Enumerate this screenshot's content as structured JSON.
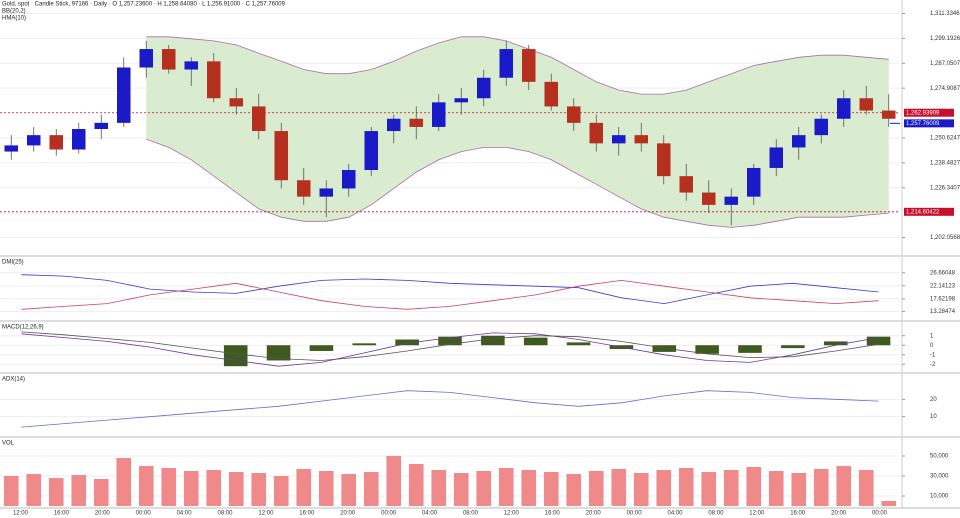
{
  "chart_data": [
    {
      "type": "candlestick",
      "title": "Gold, spot · Candle Stick, 97166 · Daily · O 1,257.23600 · H 1,258.64080 · L 1,256.91000 · C 1,257.76009",
      "annotations": [
        "BB(20,2)",
        "HMA(10)"
      ],
      "open": [
        1244,
        1247,
        1252,
        1245,
        1255,
        1258,
        1285,
        1294,
        1284,
        1288,
        1270,
        1266,
        1254,
        1230,
        1222,
        1226,
        1235,
        1254,
        1260,
        1256,
        1268,
        1270,
        1280,
        1294,
        1278,
        1266,
        1258,
        1248,
        1252,
        1248,
        1232,
        1224,
        1218,
        1222,
        1236,
        1246,
        1252,
        1260,
        1270,
        1264
      ],
      "high": [
        1252,
        1256,
        1255,
        1258,
        1262,
        1290,
        1298,
        1296,
        1290,
        1292,
        1275,
        1272,
        1258,
        1236,
        1230,
        1238,
        1256,
        1262,
        1266,
        1272,
        1275,
        1284,
        1298,
        1296,
        1282,
        1270,
        1262,
        1256,
        1258,
        1252,
        1238,
        1230,
        1226,
        1238,
        1250,
        1256,
        1262,
        1274,
        1276,
        1272
      ],
      "low": [
        1240,
        1244,
        1242,
        1243,
        1250,
        1256,
        1280,
        1282,
        1276,
        1268,
        1262,
        1250,
        1226,
        1218,
        1212,
        1222,
        1232,
        1248,
        1250,
        1254,
        1262,
        1266,
        1276,
        1274,
        1264,
        1254,
        1244,
        1242,
        1244,
        1228,
        1220,
        1214,
        1208,
        1218,
        1232,
        1240,
        1248,
        1256,
        1262,
        1256
      ],
      "close": [
        1247,
        1252,
        1245,
        1255,
        1258,
        1285,
        1294,
        1284,
        1288,
        1270,
        1266,
        1254,
        1230,
        1222,
        1226,
        1235,
        1254,
        1260,
        1256,
        1268,
        1270,
        1280,
        1294,
        1278,
        1266,
        1258,
        1248,
        1252,
        1248,
        1232,
        1224,
        1218,
        1222,
        1236,
        1246,
        1252,
        1260,
        1270,
        1264,
        1260
      ],
      "up_color": "#1a1ac8",
      "down_color": "#b5301f",
      "bands": {
        "color": "#b06aa8",
        "fill": "#d9ecd0",
        "upper": [
          null,
          null,
          null,
          null,
          null,
          null,
          1300,
          1300,
          1299,
          1298,
          1296,
          1292,
          1288,
          1284,
          1282,
          1282,
          1284,
          1288,
          1293,
          1297,
          1300,
          1300,
          1298,
          1294,
          1290,
          1284,
          1278,
          1274,
          1272,
          1272,
          1274,
          1278,
          1282,
          1286,
          1288,
          1290,
          1291,
          1291,
          1290,
          1289
        ],
        "lower": [
          null,
          null,
          null,
          null,
          null,
          null,
          1250,
          1246,
          1240,
          1232,
          1224,
          1216,
          1212,
          1210,
          1210,
          1212,
          1218,
          1226,
          1234,
          1240,
          1244,
          1246,
          1246,
          1244,
          1240,
          1234,
          1228,
          1222,
          1216,
          1212,
          1210,
          1208,
          1207,
          1208,
          1210,
          1212,
          1212,
          1212,
          1213,
          1214
        ]
      },
      "levels": [
        {
          "value": 1262.93909,
          "label": "1,262.93909",
          "color": "#c8102e"
        },
        {
          "value": 1214.60422,
          "label": "1,214.60422",
          "color": "#c8102e"
        }
      ],
      "last": {
        "value": 1257.76009,
        "label": "1,257.76009",
        "color": "#1a1ac8"
      },
      "ylim": [
        1195,
        1315
      ],
      "yticks": [
        {
          "value": 1311.33466,
          "label": "1,311.33466"
        },
        {
          "value": 1299.19268,
          "label": "1,299.19268"
        },
        {
          "value": 1287.0507,
          "label": "1,287.05070"
        },
        {
          "value": 1274.90871,
          "label": "1,274.90871"
        },
        {
          "value": 1250.62475,
          "label": "1,250.62475"
        },
        {
          "value": 1238.48277,
          "label": "1,238.48277"
        },
        {
          "value": 1226.34078,
          "label": "1,226.34078"
        },
        {
          "value": 1202.05682,
          "label": "1,202.05682"
        }
      ]
    },
    {
      "type": "line",
      "title": "DMI(25)",
      "series": [
        {
          "color": "#3a3ad0",
          "values": [
            26,
            25.5,
            24,
            21,
            20,
            19.5,
            22,
            24,
            24.5,
            24,
            23,
            22.5,
            22,
            21.5,
            18,
            16,
            19,
            22,
            23,
            21.5,
            20
          ]
        },
        {
          "color": "#d04060",
          "values": [
            14,
            15,
            16,
            19,
            21,
            23,
            20,
            17,
            15,
            14,
            15,
            17,
            19,
            22,
            24,
            22,
            20,
            18,
            17,
            16,
            17
          ]
        }
      ],
      "ylim": [
        11,
        29
      ],
      "yticks": [
        13.28474,
        17.62198,
        22.14123,
        26.66048
      ]
    },
    {
      "type": "macd",
      "title": "MACD(12,26,9)",
      "values": [
        null,
        null,
        null,
        null,
        null,
        -2.2,
        -1.6,
        -0.6,
        0.2,
        0.6,
        0.9,
        1.0,
        0.8,
        0.3,
        -0.4,
        -0.7,
        -0.9,
        -0.8,
        -0.3,
        0.4,
        0.9
      ],
      "color": "#3f5a1e",
      "series": [
        {
          "color": "#6a3a9a",
          "values": [
            1.2,
            0.8,
            0.4,
            -0.2,
            -1.0,
            -1.6,
            -2.2,
            -1.8,
            -0.8,
            0.2,
            0.8,
            1.3,
            1.2,
            0.6,
            -0.2,
            -1.0,
            -1.6,
            -1.8,
            -1.0,
            0.0,
            0.8
          ]
        },
        {
          "color": "#555555",
          "values": [
            1.4,
            1.1,
            0.7,
            0.3,
            -0.3,
            -0.9,
            -1.4,
            -1.6,
            -1.2,
            -0.6,
            0.1,
            0.7,
            1.0,
            0.9,
            0.4,
            -0.3,
            -0.9,
            -1.3,
            -1.2,
            -0.6,
            0.1
          ]
        }
      ],
      "ylim": [
        -2.6,
        1.6
      ],
      "yticks": [
        -2,
        -1,
        0,
        1
      ]
    },
    {
      "type": "line",
      "title": "ADX(14)",
      "series": [
        {
          "color": "#6a6ad8",
          "values": [
            4,
            6,
            8,
            10,
            12,
            14,
            16,
            19,
            22,
            25,
            24,
            21,
            18,
            16,
            18,
            22,
            25,
            24,
            21,
            20,
            19
          ]
        }
      ],
      "ylim": [
        0,
        30
      ],
      "yticks": [
        10,
        20
      ]
    },
    {
      "type": "bar",
      "title": "VOL",
      "values": [
        30000,
        32000,
        28000,
        31000,
        27000,
        48000,
        40000,
        38000,
        35000,
        36000,
        34000,
        33000,
        30000,
        37000,
        35000,
        32000,
        34000,
        50000,
        42000,
        36000,
        33000,
        35000,
        38000,
        36000,
        34000,
        32000,
        35000,
        37000,
        33000,
        36000,
        38000,
        34000,
        36000,
        39000,
        35000,
        33000,
        37000,
        40000,
        36000,
        5000
      ],
      "color": "#f08a8a",
      "ylim": [
        0,
        60000
      ],
      "yticks": [
        {
          "value": 10000,
          "label": "10,000"
        },
        {
          "value": 30000,
          "label": "30,000"
        },
        {
          "value": 50000,
          "label": "50,000"
        }
      ],
      "xtick_labels": [
        "12:00",
        "16:00",
        "20:00",
        "00:00",
        "04:00",
        "08:00",
        "12:00",
        "16:00",
        "20:00",
        "00:00",
        "04:00",
        "08:00",
        "12:00",
        "16:00",
        "20:00",
        "00:00",
        "04:00",
        "08:00",
        "12:00",
        "16:00",
        "20:00",
        "00:00"
      ]
    }
  ]
}
